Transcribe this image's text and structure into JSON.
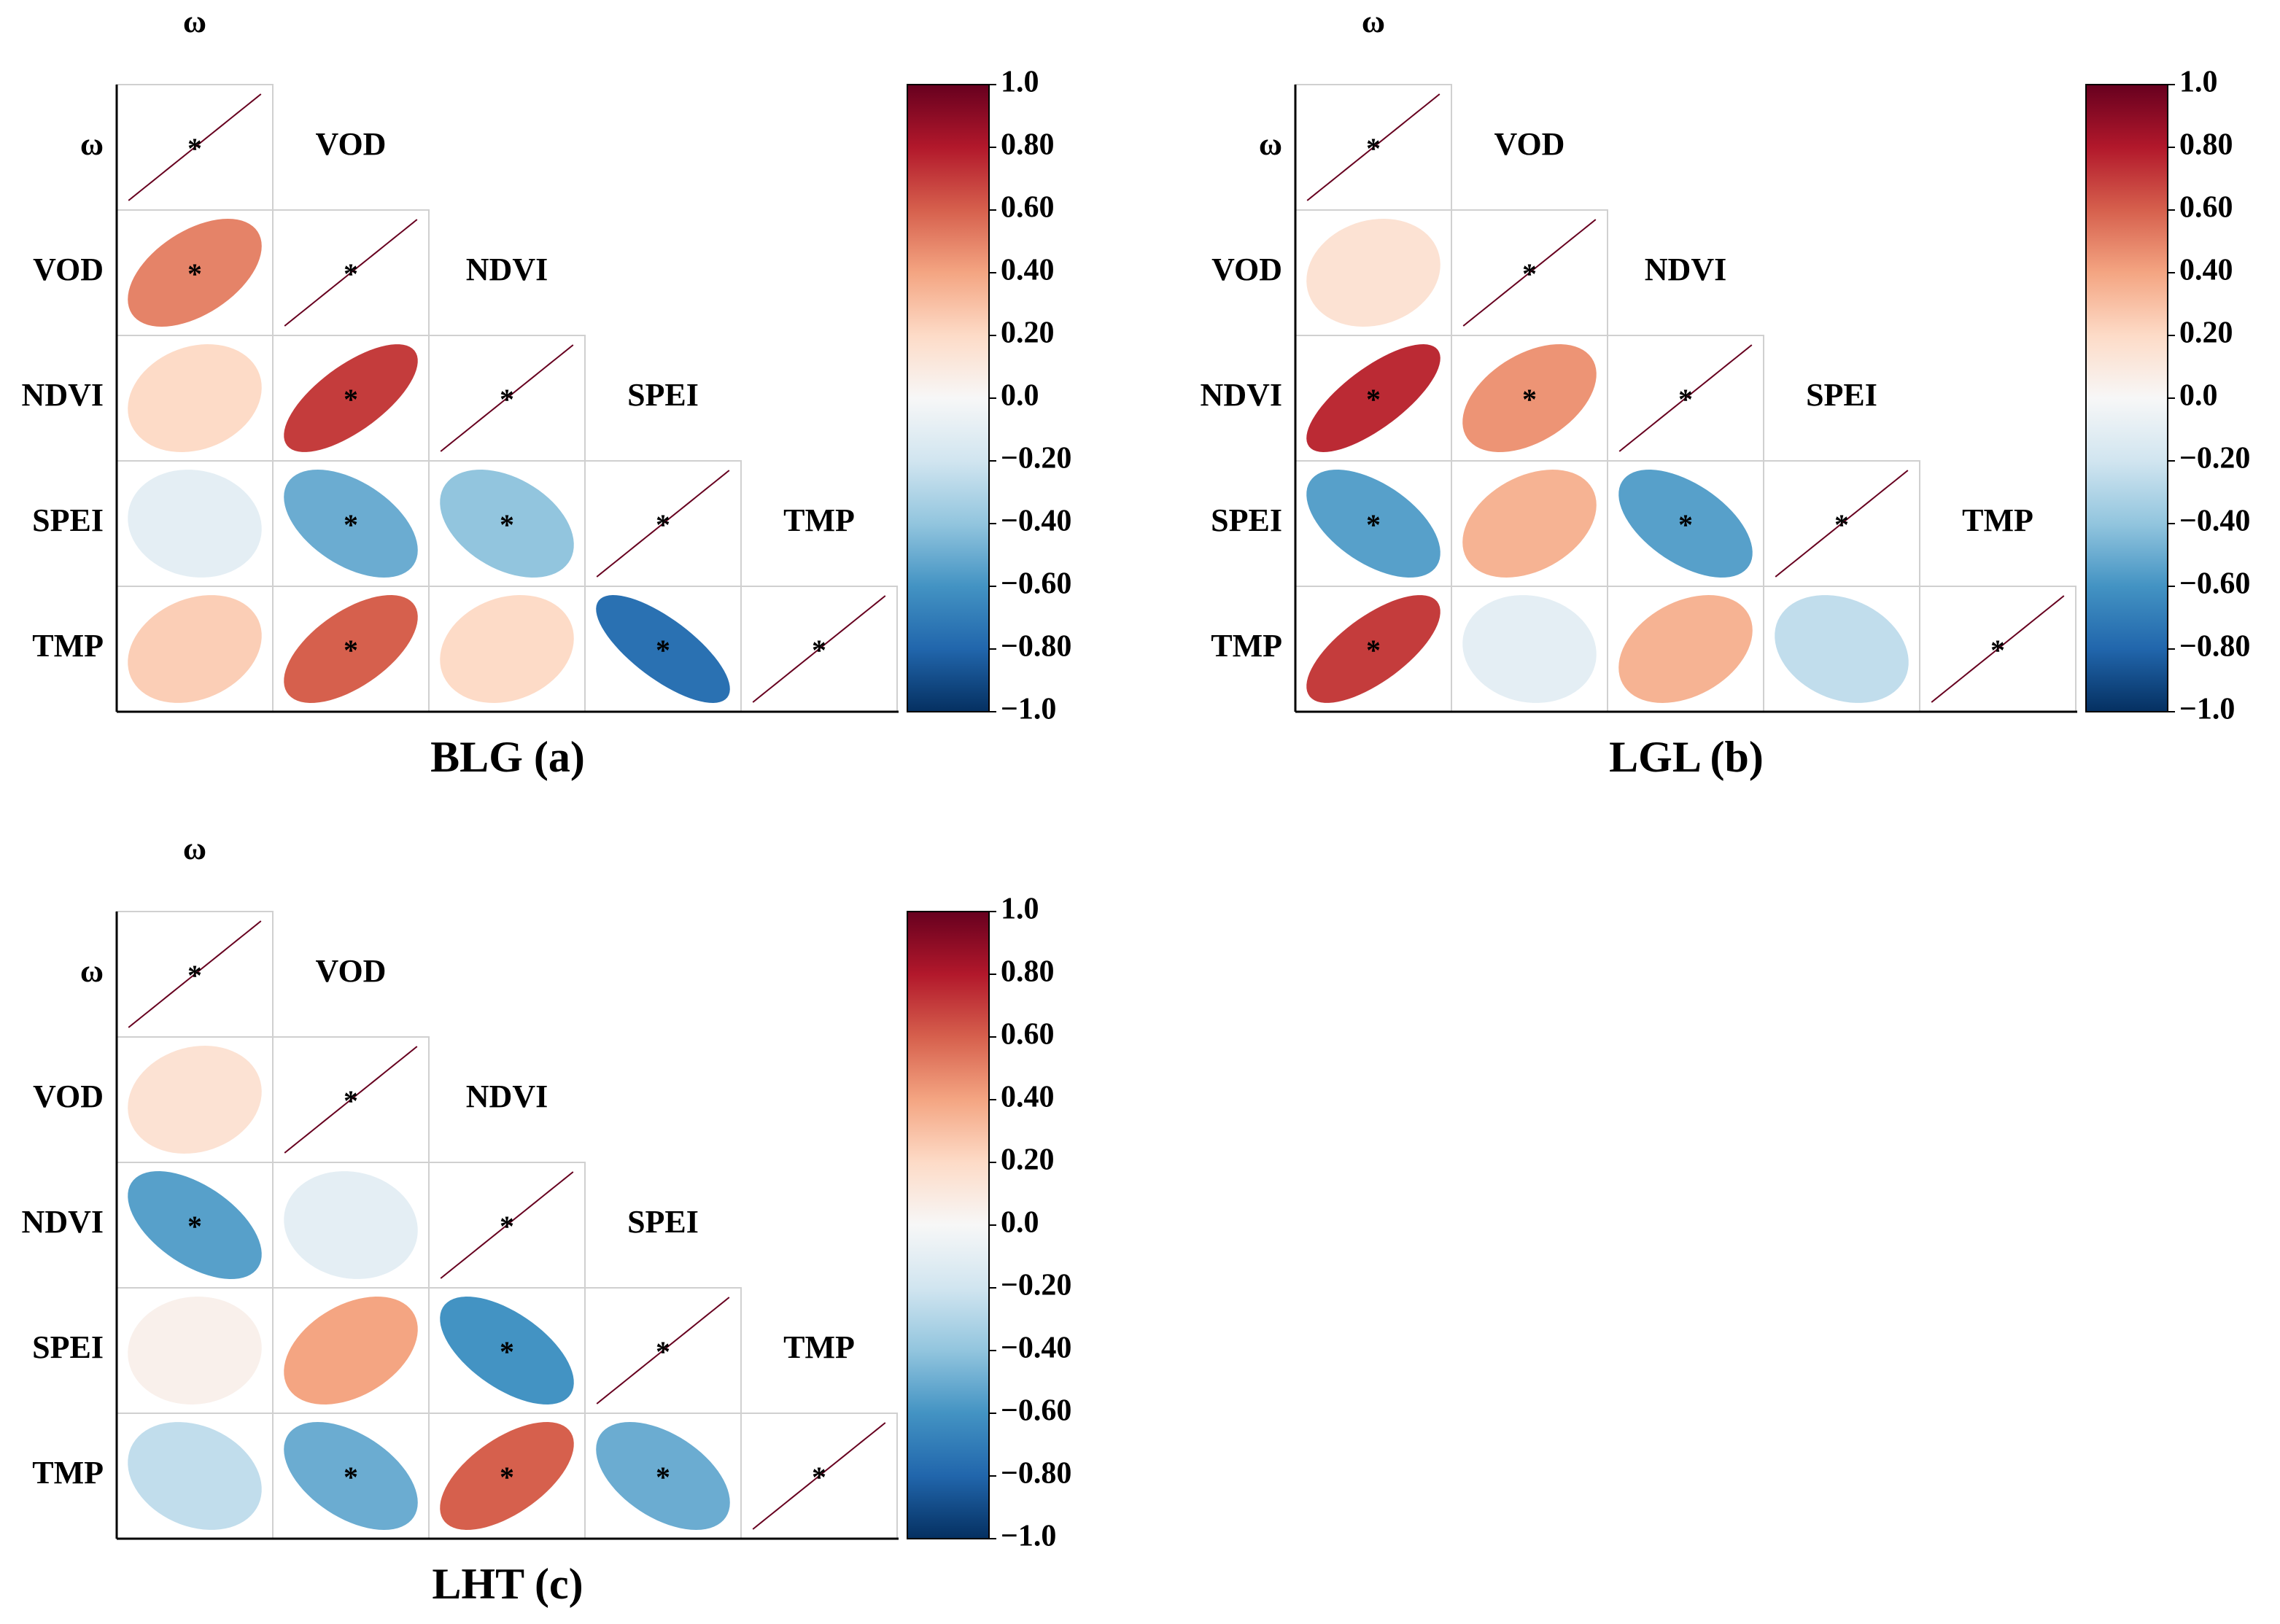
{
  "chart_data": [
    {
      "type": "correlation",
      "title": "BLG (a)",
      "variables": [
        "ω",
        "VOD",
        "NDVI",
        "SPEI",
        "TMP"
      ],
      "values": [
        [
          1
        ],
        [
          0.5,
          1
        ],
        [
          0.2,
          0.7,
          1
        ],
        [
          -0.1,
          -0.5,
          -0.4,
          1
        ],
        [
          0.25,
          0.6,
          0.2,
          -0.75,
          1
        ]
      ],
      "significant": [
        [
          true
        ],
        [
          true,
          true
        ],
        [
          false,
          true,
          true
        ],
        [
          false,
          true,
          true,
          true
        ],
        [
          false,
          true,
          false,
          true,
          true
        ]
      ],
      "significance_label": "*",
      "clim": [
        -1,
        1
      ],
      "cticks": [
        {
          "value": 1,
          "label": "1.0"
        },
        {
          "value": 0.8,
          "label": "0.80"
        },
        {
          "value": 0.6,
          "label": "0.60"
        },
        {
          "value": 0.4,
          "label": "0.40"
        },
        {
          "value": 0.2,
          "label": "0.20"
        },
        {
          "value": 0,
          "label": "0.0"
        },
        {
          "value": -0.2,
          "label": "−0.20"
        },
        {
          "value": -0.4,
          "label": "−0.40"
        },
        {
          "value": -0.6,
          "label": "−0.60"
        },
        {
          "value": -0.8,
          "label": "−0.80"
        },
        {
          "value": -1,
          "label": "−1.0"
        }
      ],
      "colormap": [
        "#053061",
        "#2166ac",
        "#4393c3",
        "#92c5de",
        "#d1e5f0",
        "#f7f7f7",
        "#fddbc7",
        "#f4a582",
        "#d6604d",
        "#b2182b",
        "#67001f"
      ],
      "grid": true
    },
    {
      "type": "correlation",
      "title": "LGL (b)",
      "variables": [
        "ω",
        "VOD",
        "NDVI",
        "SPEI",
        "TMP"
      ],
      "values": [
        [
          1
        ],
        [
          0.15,
          1
        ],
        [
          0.75,
          0.45,
          1
        ],
        [
          -0.55,
          0.35,
          -0.55,
          1
        ],
        [
          0.7,
          -0.1,
          0.35,
          -0.25,
          1
        ]
      ],
      "significant": [
        [
          true
        ],
        [
          false,
          true
        ],
        [
          true,
          true,
          true
        ],
        [
          true,
          false,
          true,
          true
        ],
        [
          true,
          false,
          false,
          false,
          true
        ]
      ],
      "significance_label": "*",
      "clim": [
        -1,
        1
      ],
      "cticks": [
        {
          "value": 1,
          "label": "1.0"
        },
        {
          "value": 0.8,
          "label": "0.80"
        },
        {
          "value": 0.6,
          "label": "0.60"
        },
        {
          "value": 0.4,
          "label": "0.40"
        },
        {
          "value": 0.2,
          "label": "0.20"
        },
        {
          "value": 0,
          "label": "0.0"
        },
        {
          "value": -0.2,
          "label": "−0.20"
        },
        {
          "value": -0.4,
          "label": "−0.40"
        },
        {
          "value": -0.6,
          "label": "−0.60"
        },
        {
          "value": -0.8,
          "label": "−0.80"
        },
        {
          "value": -1,
          "label": "−1.0"
        }
      ],
      "colormap": [
        "#053061",
        "#2166ac",
        "#4393c3",
        "#92c5de",
        "#d1e5f0",
        "#f7f7f7",
        "#fddbc7",
        "#f4a582",
        "#d6604d",
        "#b2182b",
        "#67001f"
      ],
      "grid": true
    },
    {
      "type": "correlation",
      "title": "LHT (c)",
      "variables": [
        "ω",
        "VOD",
        "NDVI",
        "SPEI",
        "TMP"
      ],
      "values": [
        [
          1
        ],
        [
          0.15,
          1
        ],
        [
          -0.55,
          -0.1,
          1
        ],
        [
          0.05,
          0.4,
          -0.6,
          1
        ],
        [
          -0.25,
          -0.5,
          0.6,
          -0.5,
          1
        ]
      ],
      "significant": [
        [
          true
        ],
        [
          false,
          true
        ],
        [
          true,
          false,
          true
        ],
        [
          false,
          false,
          true,
          true
        ],
        [
          false,
          true,
          true,
          true,
          true
        ]
      ],
      "significance_label": "*",
      "clim": [
        -1,
        1
      ],
      "cticks": [
        {
          "value": 1,
          "label": "1.0"
        },
        {
          "value": 0.8,
          "label": "0.80"
        },
        {
          "value": 0.6,
          "label": "0.60"
        },
        {
          "value": 0.4,
          "label": "0.40"
        },
        {
          "value": 0.2,
          "label": "0.20"
        },
        {
          "value": 0,
          "label": "0.0"
        },
        {
          "value": -0.2,
          "label": "−0.20"
        },
        {
          "value": -0.4,
          "label": "−0.40"
        },
        {
          "value": -0.6,
          "label": "−0.60"
        },
        {
          "value": -0.8,
          "label": "−0.80"
        },
        {
          "value": -1,
          "label": "−1.0"
        }
      ],
      "colormap": [
        "#053061",
        "#2166ac",
        "#4393c3",
        "#92c5de",
        "#d1e5f0",
        "#f7f7f7",
        "#fddbc7",
        "#f4a582",
        "#d6604d",
        "#b2182b",
        "#67001f"
      ],
      "grid": true
    }
  ]
}
